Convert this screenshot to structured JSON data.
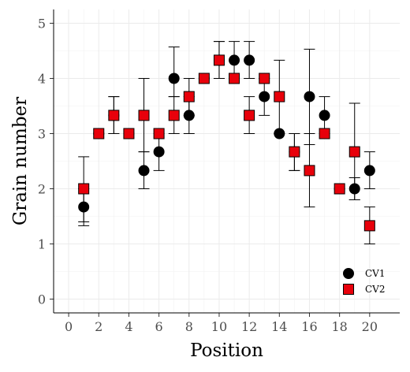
{
  "chart_data": {
    "type": "scatter",
    "title": "",
    "xlabel": "Position",
    "ylabel": "Grain number",
    "xlim": [
      -1,
      22
    ],
    "ylim": [
      -0.25,
      5.25
    ],
    "x_ticks": [
      0,
      2,
      4,
      6,
      8,
      10,
      12,
      14,
      16,
      18,
      20
    ],
    "y_ticks": [
      0,
      1,
      2,
      3,
      4,
      5
    ],
    "grid": true,
    "legend_position": "bottom-right",
    "error_bars": true,
    "series": [
      {
        "name": "CV1",
        "marker": "circle",
        "color": "#000000",
        "points": [
          {
            "x": 1,
            "y": 1.67,
            "lo": 1.33,
            "hi": 2.0
          },
          {
            "x": 2,
            "y": 3.0,
            "lo": 3.0,
            "hi": 3.0
          },
          {
            "x": 3,
            "y": 3.33,
            "lo": 3.0,
            "hi": 3.67
          },
          {
            "x": 4,
            "y": 3.0,
            "lo": 3.0,
            "hi": 3.0
          },
          {
            "x": 5,
            "y": 2.33,
            "lo": 2.0,
            "hi": 2.67
          },
          {
            "x": 6,
            "y": 2.67,
            "lo": 2.33,
            "hi": 3.0
          },
          {
            "x": 7,
            "y": 4.0,
            "lo": 3.67,
            "hi": 4.57
          },
          {
            "x": 8,
            "y": 3.33,
            "lo": 3.0,
            "hi": 3.67
          },
          {
            "x": 9,
            "y": 4.0,
            "lo": 4.0,
            "hi": 4.0
          },
          {
            "x": 10,
            "y": 4.33,
            "lo": 4.0,
            "hi": 4.67
          },
          {
            "x": 11,
            "y": 4.33,
            "lo": 4.0,
            "hi": 4.67
          },
          {
            "x": 12,
            "y": 4.33,
            "lo": 4.0,
            "hi": 4.67
          },
          {
            "x": 13,
            "y": 3.67,
            "lo": 3.33,
            "hi": 4.0
          },
          {
            "x": 14,
            "y": 3.0,
            "lo": 3.0,
            "hi": 3.0
          },
          {
            "x": 15,
            "y": 2.67,
            "lo": 2.33,
            "hi": 3.0
          },
          {
            "x": 16,
            "y": 3.67,
            "lo": 2.8,
            "hi": 4.53
          },
          {
            "x": 17,
            "y": 3.33,
            "lo": 3.0,
            "hi": 3.67
          },
          {
            "x": 18,
            "y": 2.0,
            "lo": 2.0,
            "hi": 2.0
          },
          {
            "x": 19,
            "y": 2.0,
            "lo": 1.8,
            "hi": 2.2
          },
          {
            "x": 20,
            "y": 2.33,
            "lo": 2.0,
            "hi": 2.67
          }
        ]
      },
      {
        "name": "CV2",
        "marker": "square",
        "color": "#e8000b",
        "points": [
          {
            "x": 1,
            "y": 2.0,
            "lo": 1.4,
            "hi": 2.58
          },
          {
            "x": 2,
            "y": 3.0,
            "lo": 3.0,
            "hi": 3.0
          },
          {
            "x": 3,
            "y": 3.33,
            "lo": 3.0,
            "hi": 3.67
          },
          {
            "x": 4,
            "y": 3.0,
            "lo": 3.0,
            "hi": 3.0
          },
          {
            "x": 5,
            "y": 3.33,
            "lo": 2.67,
            "hi": 4.0
          },
          {
            "x": 6,
            "y": 3.0,
            "lo": 3.0,
            "hi": 3.0
          },
          {
            "x": 7,
            "y": 3.33,
            "lo": 3.0,
            "hi": 3.67
          },
          {
            "x": 8,
            "y": 3.67,
            "lo": 3.33,
            "hi": 4.0
          },
          {
            "x": 9,
            "y": 4.0,
            "lo": 4.0,
            "hi": 4.0
          },
          {
            "x": 10,
            "y": 4.33,
            "lo": 4.0,
            "hi": 4.67
          },
          {
            "x": 11,
            "y": 4.0,
            "lo": 4.0,
            "hi": 4.0
          },
          {
            "x": 12,
            "y": 3.33,
            "lo": 3.0,
            "hi": 3.67
          },
          {
            "x": 13,
            "y": 4.0,
            "lo": 4.0,
            "hi": 4.0
          },
          {
            "x": 14,
            "y": 3.67,
            "lo": 3.0,
            "hi": 4.33
          },
          {
            "x": 15,
            "y": 2.67,
            "lo": 2.33,
            "hi": 3.0
          },
          {
            "x": 16,
            "y": 2.33,
            "lo": 1.67,
            "hi": 3.0
          },
          {
            "x": 17,
            "y": 3.0,
            "lo": 3.0,
            "hi": 3.0
          },
          {
            "x": 18,
            "y": 2.0,
            "lo": 2.0,
            "hi": 2.0
          },
          {
            "x": 19,
            "y": 2.67,
            "lo": 1.8,
            "hi": 3.55
          },
          {
            "x": 20,
            "y": 1.33,
            "lo": 1.0,
            "hi": 1.67
          }
        ]
      }
    ]
  }
}
